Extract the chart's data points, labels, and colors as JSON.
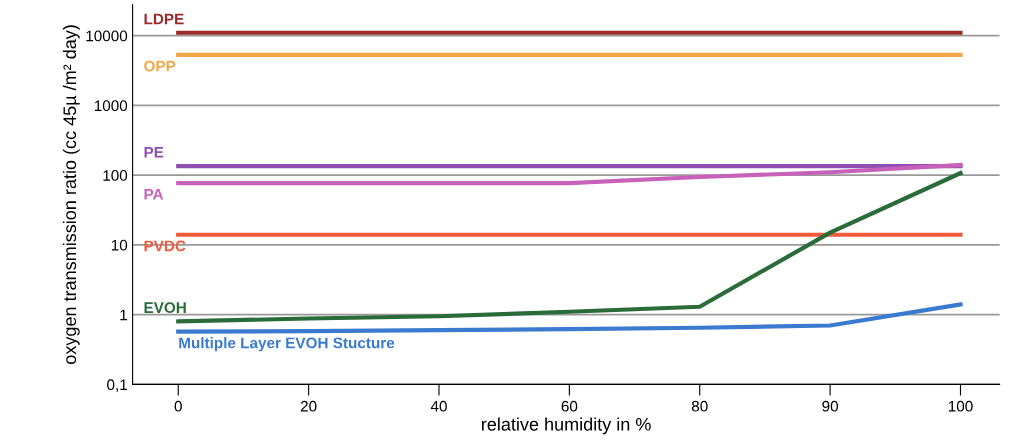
{
  "chart_data": {
    "type": "line",
    "ylabel": "oxygen transmission ratio (cc 45µ /m² day)",
    "xlabel": "relative humidity in %",
    "categories": [
      "0",
      "20",
      "40",
      "60",
      "80",
      "90",
      "100"
    ],
    "series": [
      {
        "name": "LDPE",
        "color": "#9b2a2a",
        "values": [
          11000,
          11000,
          11000,
          11000,
          11000,
          11000,
          11000
        ]
      },
      {
        "name": "OPP",
        "color": "#f0a848",
        "values": [
          5300,
          5300,
          5300,
          5300,
          5300,
          5300,
          5300
        ]
      },
      {
        "name": "PE",
        "color": "#8e4fb0",
        "values": [
          135,
          135,
          135,
          135,
          135,
          135,
          135
        ]
      },
      {
        "name": "PA",
        "color": "#c861b9",
        "values": [
          77,
          77,
          77,
          77,
          94,
          110,
          140
        ]
      },
      {
        "name": "PVDC",
        "color": "#ef5a3c",
        "values": [
          14,
          14,
          14,
          14,
          14,
          14,
          14
        ]
      },
      {
        "name": "EVOH",
        "color": "#2a6b3a",
        "values": [
          0.8,
          0.88,
          0.95,
          1.1,
          1.3,
          15,
          107
        ]
      },
      {
        "name": "Multiple Layer EVOH Stucture",
        "color": "#3a7bd0",
        "values": [
          0.57,
          0.58,
          0.6,
          0.62,
          0.65,
          0.7,
          1.4
        ]
      }
    ],
    "log": true,
    "ylim": [
      0.1,
      28000
    ],
    "yticks": [
      {
        "value": 0.1,
        "label": "0,1"
      },
      1,
      10,
      100,
      1000,
      10000
    ],
    "grid": "y",
    "legend": false,
    "marker": "none",
    "line_style": "solid"
  }
}
